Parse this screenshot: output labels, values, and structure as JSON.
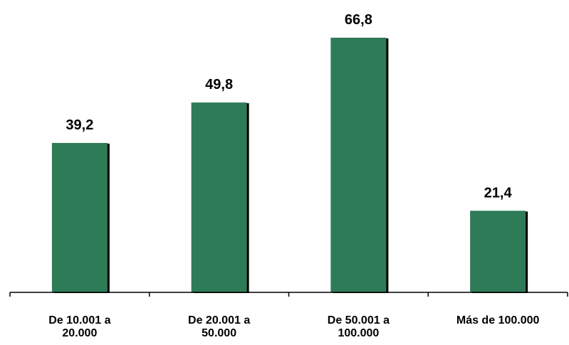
{
  "chart_data": {
    "type": "bar",
    "categories": [
      [
        "De 10.001 a",
        "20.000"
      ],
      [
        "De 20.001 a",
        "50.000"
      ],
      [
        "De 50.001 a",
        "100.000"
      ],
      [
        "Más de 100.000"
      ]
    ],
    "values": [
      39.2,
      49.8,
      66.8,
      21.4
    ],
    "value_labels": [
      "39,2",
      "49,8",
      "66,8",
      "21,4"
    ],
    "title": "",
    "xlabel": "",
    "ylabel": "",
    "ylim": [
      0,
      66.8
    ],
    "grid": false,
    "legend": "none",
    "colors": {
      "bar": "#2e7b57",
      "bar_shadow": "#000000",
      "axis": "#000000"
    }
  }
}
